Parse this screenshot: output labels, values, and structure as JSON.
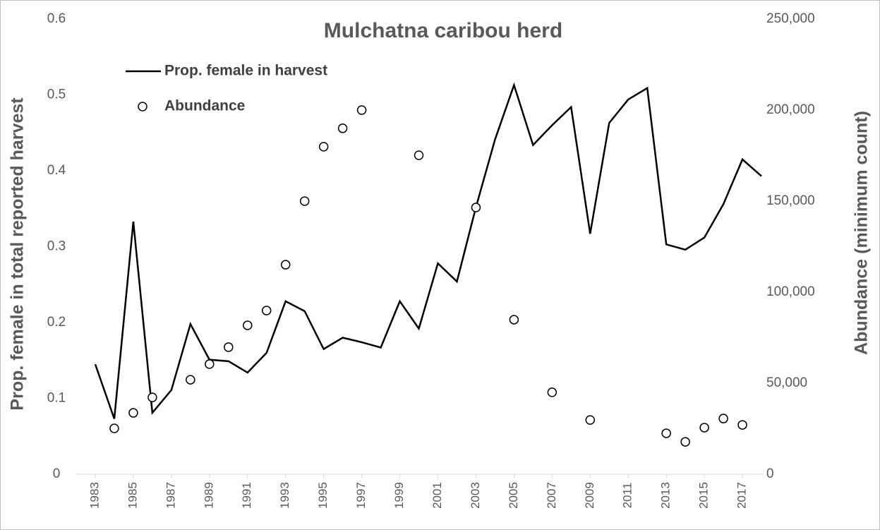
{
  "chart_data": {
    "type": "line",
    "title": "Mulchatna caribou herd",
    "ylabel": "Prop. female in total reported harvest",
    "y2label": "Abundance (minimum count)",
    "x": [
      1983,
      1984,
      1985,
      1986,
      1987,
      1988,
      1989,
      1990,
      1991,
      1992,
      1993,
      1994,
      1995,
      1996,
      1997,
      1998,
      1999,
      2000,
      2001,
      2002,
      2003,
      2004,
      2005,
      2006,
      2007,
      2008,
      2009,
      2010,
      2011,
      2012,
      2013,
      2014,
      2015,
      2016,
      2017,
      2018
    ],
    "xlim": [
      1982,
      2019
    ],
    "xticks": [
      1983,
      1985,
      1987,
      1989,
      1991,
      1993,
      1995,
      1997,
      1999,
      2001,
      2003,
      2005,
      2007,
      2009,
      2011,
      2013,
      2015,
      2017
    ],
    "ylim": [
      0,
      0.6
    ],
    "yticks": [
      0,
      0.1,
      0.2,
      0.3,
      0.4,
      0.5,
      0.6
    ],
    "y2lim": [
      0,
      250000
    ],
    "y2ticks": [
      0,
      {
        "value": 50000,
        "label": "50,000"
      },
      {
        "value": 100000,
        "label": "100,000"
      },
      {
        "value": 150000,
        "label": "150,000"
      },
      {
        "value": 200000,
        "label": "200,000"
      },
      {
        "value": 250000,
        "label": "250,000"
      }
    ],
    "legend": "upper left",
    "series": [
      {
        "name": "Prop. female in harvest",
        "color": "#000000",
        "mark": "line",
        "values": [
          0.145,
          0.073,
          0.333,
          0.081,
          0.111,
          0.198,
          0.151,
          0.149,
          0.134,
          0.16,
          0.228,
          0.215,
          0.165,
          0.18,
          0.174,
          0.167,
          0.228,
          0.192,
          0.278,
          0.254,
          0.352,
          0.441,
          0.513,
          0.434,
          0.46,
          0.484,
          0.317,
          0.463,
          0.494,
          0.509,
          0.303,
          0.296,
          0.312,
          0.356,
          0.415,
          0.393
        ]
      },
      {
        "name": "Abundance",
        "color": "#000000",
        "mark": "circle",
        "axis": "y2",
        "values": [
          null,
          25200,
          33700,
          42200,
          null,
          51900,
          60500,
          69800,
          81800,
          89900,
          115100,
          150000,
          179900,
          190000,
          200000,
          null,
          null,
          175200,
          null,
          null,
          146500,
          null,
          84900,
          null,
          45000,
          null,
          29800,
          null,
          null,
          null,
          22500,
          17800,
          25600,
          30600,
          27100,
          null
        ]
      }
    ]
  }
}
